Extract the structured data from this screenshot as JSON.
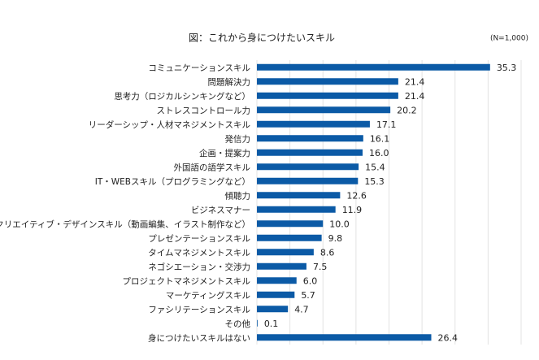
{
  "chart_data": {
    "type": "bar",
    "orientation": "horizontal",
    "title": "図：これから身につけたいスキル",
    "note": "(N=1,000)",
    "categories": [
      "コミュニケーションスキル",
      "問題解決力",
      "思考力（ロジカルシンキングなど）",
      "ストレスコントロール力",
      "リーダーシップ・人材マネジメントスキル",
      "発信力",
      "企画・提案力",
      "外国語の語学スキル",
      "IT・WEBスキル（プログラミングなど）",
      "傾聴力",
      "ビジネスマナー",
      "クリエイティブ・デザインスキル（動画編集、イラスト制作など）",
      "プレゼンテーションスキル",
      "タイムマネジメントスキル",
      "ネゴシエーション・交渉力",
      "プロジェクトマネジメントスキル",
      "マーケティングスキル",
      "ファシリテーションスキル",
      "その他",
      "身につけたいスキルはない"
    ],
    "values": [
      35.3,
      21.4,
      21.4,
      20.2,
      17.1,
      16.1,
      16.0,
      15.4,
      15.3,
      12.6,
      11.9,
      10.0,
      9.8,
      8.6,
      7.5,
      6.0,
      5.7,
      4.7,
      0.1,
      26.4
    ],
    "value_labels": [
      "35.3",
      "21.4",
      "21.4",
      "20.2",
      "17.1",
      "16.1",
      "16.0",
      "15.4",
      "15.3",
      "12.6",
      "11.9",
      "10.0",
      "9.8",
      "8.6",
      "7.5",
      "6.0",
      "5.7",
      "4.7",
      "0.1",
      "26.4"
    ],
    "color": "#0b5aa6",
    "xlim": [
      0,
      40
    ],
    "xticks": [
      0,
      5,
      10,
      15,
      20,
      25,
      30,
      35,
      40
    ],
    "grid": true
  }
}
